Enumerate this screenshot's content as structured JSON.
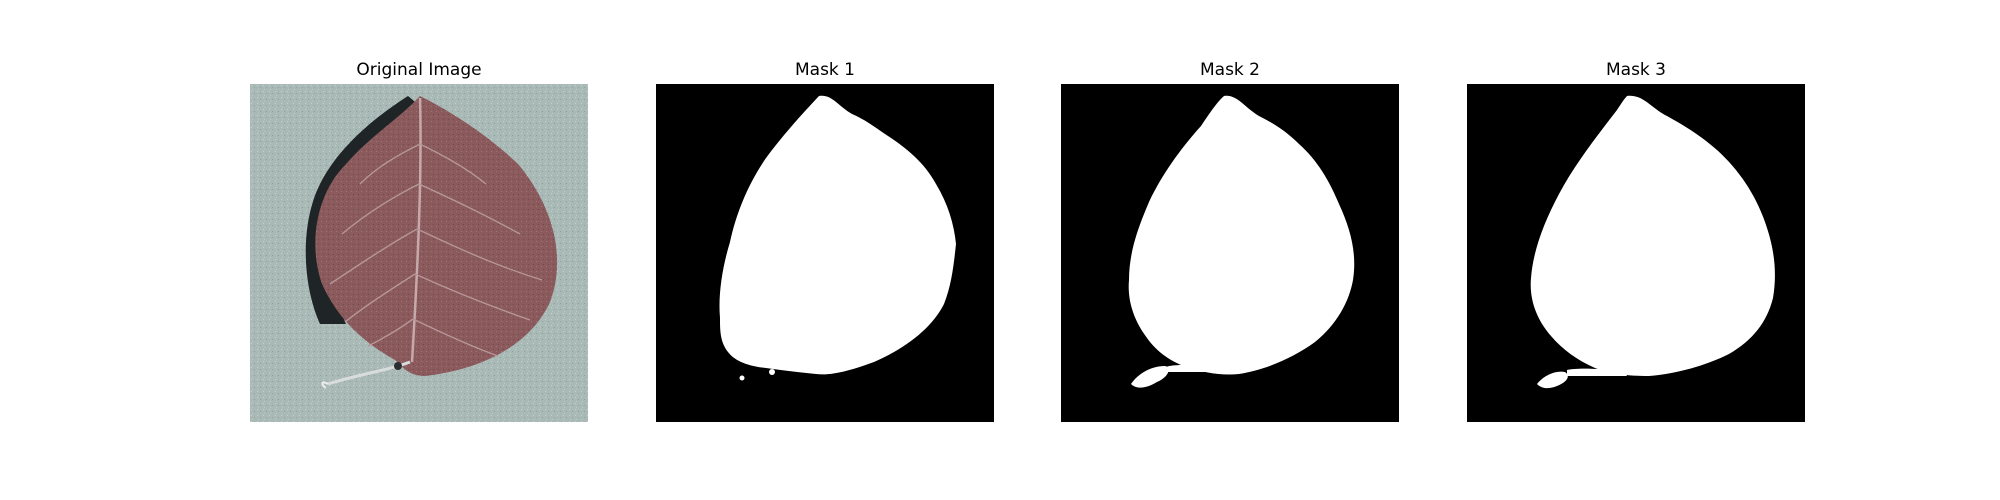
{
  "figure": {
    "panels": [
      {
        "title": "Original Image",
        "kind": "photo"
      },
      {
        "title": "Mask 1",
        "kind": "mask"
      },
      {
        "title": "Mask 2",
        "kind": "mask"
      },
      {
        "title": "Mask 3",
        "kind": "mask"
      }
    ]
  },
  "colors": {
    "mask_background": "#000000",
    "mask_foreground": "#ffffff",
    "photo_background": "#a9b9b6",
    "leaf": "#8a5a5c",
    "leaf_shadow": "#1f2426",
    "vein": "#c7a9ab"
  }
}
